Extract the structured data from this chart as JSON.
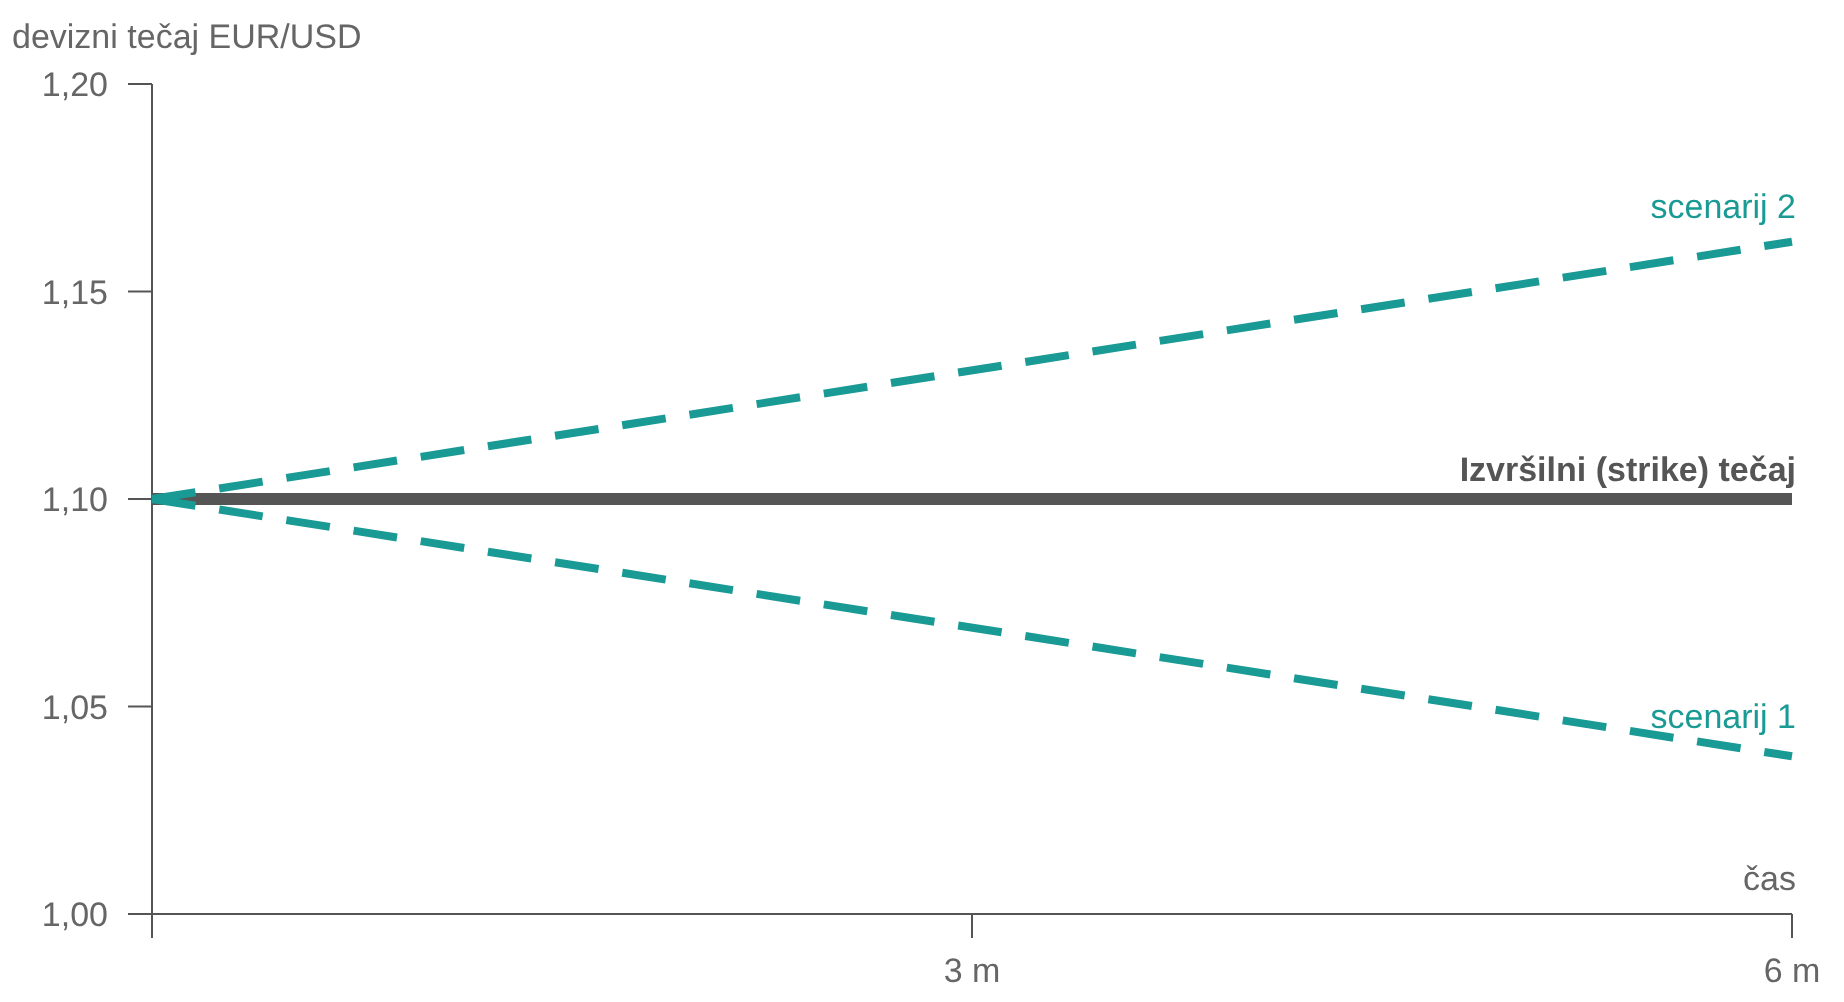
{
  "chart_data": {
    "type": "line",
    "ylabel": "devizni tečaj EUR/USD",
    "xlabel": "čas",
    "xlim": [
      0,
      6
    ],
    "xticks": [
      {
        "value": 0,
        "label": null
      },
      {
        "value": 3,
        "label": "3 m"
      },
      {
        "value": 6,
        "label": "6 m"
      }
    ],
    "ylim": [
      1.0,
      1.2
    ],
    "yticks": [
      {
        "value": 1.0,
        "label": "1,00"
      },
      {
        "value": 1.05,
        "label": "1,05"
      },
      {
        "value": 1.1,
        "label": "1,10"
      },
      {
        "value": 1.15,
        "label": "1,15"
      },
      {
        "value": 1.2,
        "label": "1,20"
      }
    ],
    "grid": false,
    "marker": "none",
    "x": [
      0,
      6
    ],
    "ref_lines": [
      {
        "axis": "y",
        "value": 1.1,
        "label": "Izvršilni (strike) tečaj",
        "color": "#555555",
        "line_style": "solid"
      }
    ],
    "series": [
      {
        "name": "scenarij 2",
        "color": "#1a9a94",
        "values": [
          1.1,
          1.162
        ],
        "line_style": "dashed"
      },
      {
        "name": "scenarij 1",
        "color": "#1a9a94",
        "values": [
          1.1,
          1.038
        ],
        "line_style": "dashed"
      }
    ]
  }
}
